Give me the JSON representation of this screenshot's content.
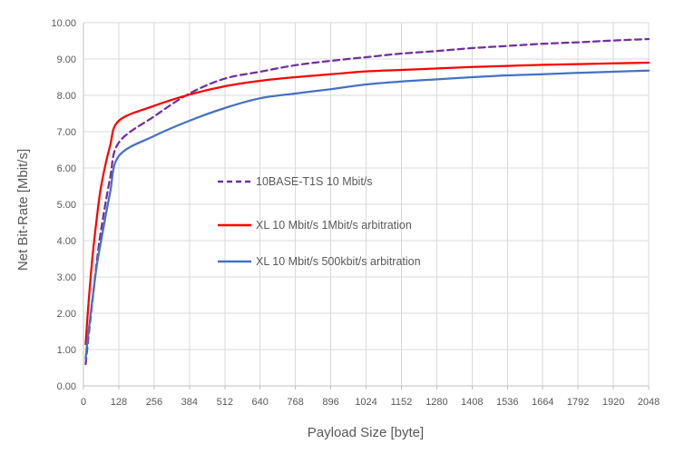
{
  "chart_data": {
    "type": "line",
    "title": "",
    "xlabel": "Payload Size [byte]",
    "ylabel": "Net Bit-Rate [Mbit/s]",
    "xlim": [
      0,
      2048
    ],
    "ylim": [
      0,
      10
    ],
    "x_tick_step": 128,
    "y_tick_step": 1,
    "y_tick_decimals": 2,
    "grid": "on",
    "legend_position": "inside-plot-center-left",
    "x": [
      8,
      16,
      32,
      48,
      64,
      96,
      128,
      256,
      384,
      512,
      640,
      768,
      896,
      1024,
      1152,
      1280,
      1408,
      1536,
      1664,
      1792,
      1920,
      2048
    ],
    "series": [
      {
        "name": "10BASE-T1S 10 Mbit/s",
        "color": "#7030A0",
        "style": "dashed",
        "values": [
          0.6,
          1.2,
          2.3,
          3.4,
          4.3,
          5.7,
          6.7,
          7.42,
          8.05,
          8.46,
          8.65,
          8.83,
          8.95,
          9.05,
          9.15,
          9.22,
          9.3,
          9.36,
          9.42,
          9.46,
          9.51,
          9.55
        ]
      },
      {
        "name": "XL 10 Mbit/s 1Mbit/s arbitration",
        "color": "#FF0000",
        "style": "solid",
        "values": [
          1.15,
          2.05,
          3.5,
          4.6,
          5.5,
          6.6,
          7.3,
          7.71,
          8.02,
          8.25,
          8.4,
          8.5,
          8.58,
          8.66,
          8.7,
          8.74,
          8.78,
          8.81,
          8.84,
          8.86,
          8.88,
          8.9
        ]
      },
      {
        "name": "XL 10 Mbit/s 500kbit/s arbitration",
        "color": "#4472C4",
        "style": "solid",
        "values": [
          0.75,
          1.35,
          2.35,
          3.3,
          4.0,
          5.3,
          6.33,
          6.88,
          7.3,
          7.65,
          7.92,
          8.05,
          8.17,
          8.3,
          8.38,
          8.44,
          8.5,
          8.55,
          8.58,
          8.62,
          8.65,
          8.68
        ]
      }
    ],
    "colors": {
      "grid": "#D9D9D9",
      "axis": "#BFBFBF",
      "text": "#595959",
      "background": "#FFFFFF"
    }
  }
}
